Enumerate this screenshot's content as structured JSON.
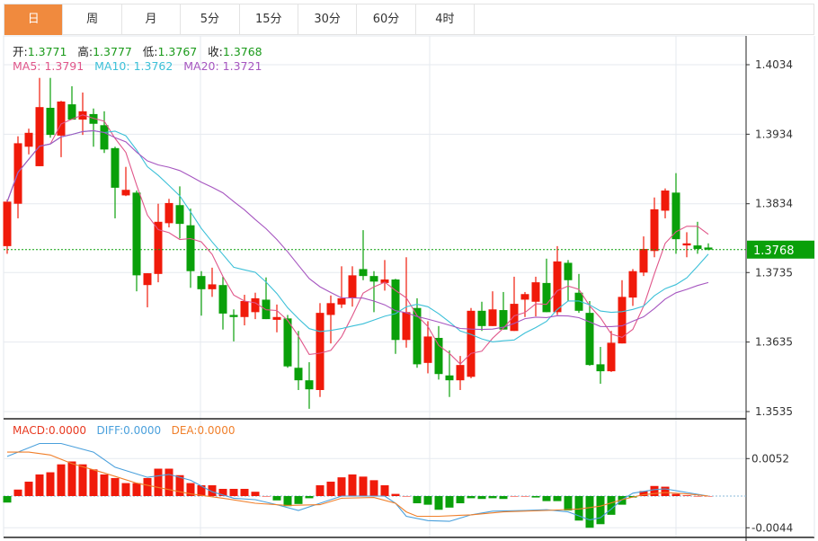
{
  "tabs": [
    {
      "label": "日",
      "active": true
    },
    {
      "label": "周"
    },
    {
      "label": "月"
    },
    {
      "label": "5分"
    },
    {
      "label": "15分"
    },
    {
      "label": "30分"
    },
    {
      "label": "60分"
    },
    {
      "label": "4时"
    }
  ],
  "ohlc_legend": {
    "open_label": "开:",
    "open": "1.3771",
    "high_label": "高:",
    "high": "1.3777",
    "low_label": "低:",
    "low": "1.3767",
    "close_label": "收:",
    "close": "1.3768"
  },
  "ma_legend": {
    "ma5": "MA5: 1.3791",
    "ma10": "MA10: 1.3762",
    "ma20": "MA20: 1.3721"
  },
  "macd_legend": {
    "macd": "MACD:0.0000",
    "diff": "DIFF:0.0000",
    "dea": "DEA:0.0000"
  },
  "colors": {
    "up": "#f01a0a",
    "down": "#0aa00a",
    "ma5": "#e0568a",
    "ma10": "#3cc0d8",
    "ma20": "#a656c0",
    "diff": "#4aa0dc",
    "dea": "#f07f2a",
    "active_tab": "#f08a3e"
  },
  "chart_data": [
    {
      "type": "candlestick",
      "title": "",
      "price_axis_ticks": [
        "1.4034",
        "1.3934",
        "1.3834",
        "1.3735",
        "1.3635",
        "1.3535"
      ],
      "ylim": [
        1.3523,
        1.413
      ],
      "current_price": "1.3768",
      "moving_averages": [
        5,
        10,
        20
      ],
      "candles": [
        [
          1.3773,
          1.3837,
          1.384,
          1.3762
        ],
        [
          1.3834,
          1.3921,
          1.3931,
          1.3813
        ],
        [
          1.3916,
          1.3936,
          1.3942,
          1.3905
        ],
        [
          1.3888,
          1.3973,
          1.4015,
          1.3888
        ],
        [
          1.3972,
          1.3933,
          1.4015,
          1.3929
        ],
        [
          1.3932,
          1.3981,
          1.3982,
          1.3901
        ],
        [
          1.3977,
          1.3955,
          1.4003,
          1.3955
        ],
        [
          1.3955,
          1.3967,
          1.3994,
          1.3933
        ],
        [
          1.3963,
          1.3949,
          1.3971,
          1.3916
        ],
        [
          1.3947,
          1.3912,
          1.3967,
          1.3907
        ],
        [
          1.3914,
          1.3857,
          1.3916,
          1.3813
        ],
        [
          1.3846,
          1.3854,
          1.3887,
          1.3845
        ],
        [
          1.385,
          1.3731,
          1.3853,
          1.3708
        ],
        [
          1.3717,
          1.3734,
          1.3734,
          1.3685
        ],
        [
          1.3733,
          1.3808,
          1.3834,
          1.3721
        ],
        [
          1.3806,
          1.3835,
          1.3841,
          1.38
        ],
        [
          1.3832,
          1.3805,
          1.3859,
          1.3784
        ],
        [
          1.3803,
          1.3737,
          1.3827,
          1.3713
        ],
        [
          1.373,
          1.3711,
          1.3737,
          1.3673
        ],
        [
          1.3711,
          1.3718,
          1.3742,
          1.37
        ],
        [
          1.3717,
          1.3676,
          1.3729,
          1.3653
        ],
        [
          1.3674,
          1.3671,
          1.3682,
          1.3636
        ],
        [
          1.3671,
          1.3694,
          1.3703,
          1.3659
        ],
        [
          1.3678,
          1.3698,
          1.3706,
          1.3668
        ],
        [
          1.3696,
          1.3668,
          1.3728,
          1.3668
        ],
        [
          1.3667,
          1.3671,
          1.3689,
          1.3649
        ],
        [
          1.3669,
          1.36,
          1.3674,
          1.3598
        ],
        [
          1.3598,
          1.358,
          1.3651,
          1.3566
        ],
        [
          1.358,
          1.3567,
          1.3606,
          1.3539
        ],
        [
          1.3566,
          1.3677,
          1.3691,
          1.3556
        ],
        [
          1.3674,
          1.3691,
          1.3702,
          1.3633
        ],
        [
          1.3689,
          1.3698,
          1.3744,
          1.3684
        ],
        [
          1.3698,
          1.3731,
          1.3744,
          1.3686
        ],
        [
          1.374,
          1.373,
          1.3796,
          1.3724
        ],
        [
          1.373,
          1.3722,
          1.3737,
          1.3678
        ],
        [
          1.372,
          1.3725,
          1.3753,
          1.3709
        ],
        [
          1.3725,
          1.3638,
          1.3726,
          1.3618
        ],
        [
          1.3638,
          1.3678,
          1.3757,
          1.3627
        ],
        [
          1.3684,
          1.3603,
          1.3698,
          1.3598
        ],
        [
          1.3605,
          1.3643,
          1.3665,
          1.359
        ],
        [
          1.3641,
          1.3589,
          1.3658,
          1.3581
        ],
        [
          1.3587,
          1.358,
          1.3623,
          1.3556
        ],
        [
          1.358,
          1.3602,
          1.3615,
          1.3566
        ],
        [
          1.3585,
          1.368,
          1.3684,
          1.3583
        ],
        [
          1.368,
          1.3658,
          1.3693,
          1.3651
        ],
        [
          1.3658,
          1.3682,
          1.3708,
          1.3658
        ],
        [
          1.3681,
          1.3653,
          1.3707,
          1.3653
        ],
        [
          1.3651,
          1.369,
          1.3729,
          1.3651
        ],
        [
          1.3696,
          1.3704,
          1.3707,
          1.3671
        ],
        [
          1.3693,
          1.3721,
          1.3729,
          1.3672
        ],
        [
          1.372,
          1.3678,
          1.3755,
          1.3678
        ],
        [
          1.3678,
          1.3751,
          1.3773,
          1.3674
        ],
        [
          1.3749,
          1.3724,
          1.3753,
          1.3694
        ],
        [
          1.3706,
          1.368,
          1.3733,
          1.3677
        ],
        [
          1.3677,
          1.3602,
          1.3694,
          1.3601
        ],
        [
          1.3603,
          1.3593,
          1.3628,
          1.3575
        ],
        [
          1.3593,
          1.3634,
          1.3651,
          1.3592
        ],
        [
          1.3633,
          1.37,
          1.3724,
          1.3633
        ],
        [
          1.3699,
          1.3737,
          1.374,
          1.3687
        ],
        [
          1.3735,
          1.3769,
          1.3787,
          1.373
        ],
        [
          1.3766,
          1.3826,
          1.3843,
          1.3757
        ],
        [
          1.3824,
          1.3853,
          1.3856,
          1.3813
        ],
        [
          1.385,
          1.3783,
          1.3878,
          1.3762
        ],
        [
          1.3774,
          1.3777,
          1.3793,
          1.3757
        ],
        [
          1.3774,
          1.3769,
          1.3808,
          1.3762
        ],
        [
          1.3771,
          1.3768,
          1.3777,
          1.3767
        ]
      ]
    },
    {
      "type": "bar",
      "title": "MACD",
      "axis_ticks": [
        "0.0052",
        "-0.0044"
      ],
      "ylim": [
        -0.0049,
        0.0105
      ],
      "histogram": [
        -0.0009,
        0.0009,
        0.002,
        0.003,
        0.0033,
        0.0044,
        0.0048,
        0.0044,
        0.0037,
        0.003,
        0.0025,
        0.0018,
        0.0018,
        0.0025,
        0.0038,
        0.0038,
        0.0029,
        0.0018,
        0.0015,
        0.0015,
        0.001,
        0.001,
        0.001,
        0.0006,
        0.0,
        -0.0006,
        -0.0014,
        -0.0011,
        -0.0003,
        0.0015,
        0.002,
        0.0026,
        0.003,
        0.0027,
        0.0022,
        0.0015,
        0.0003,
        0.0,
        -0.001,
        -0.0012,
        -0.0019,
        -0.0016,
        -0.001,
        -0.0003,
        -0.0004,
        -0.0003,
        -0.0004,
        0.0,
        0.0,
        -0.0002,
        -0.0007,
        -0.0007,
        -0.002,
        -0.0034,
        -0.0044,
        -0.0039,
        -0.0026,
        -0.0012,
        -0.0002,
        0.0007,
        0.0014,
        0.0013,
        0.0003,
        0.0001,
        0.0,
        0.0
      ],
      "diff": [
        [
          0,
          0.0055
        ],
        [
          3,
          0.0073
        ],
        [
          5,
          0.0073
        ],
        [
          8,
          0.0061
        ],
        [
          10,
          0.004
        ],
        [
          13,
          0.0026
        ],
        [
          15,
          0.003
        ],
        [
          17,
          0.0022
        ],
        [
          19,
          0.0006
        ],
        [
          21,
          -0.0003
        ],
        [
          23,
          -0.0005
        ],
        [
          25,
          -0.0012
        ],
        [
          27,
          -0.002
        ],
        [
          29,
          -0.001
        ],
        [
          31,
          0.0
        ],
        [
          35,
          0.0
        ],
        [
          36,
          -0.001
        ],
        [
          37,
          -0.0028
        ],
        [
          39,
          -0.0034
        ],
        [
          41,
          -0.0035
        ],
        [
          43,
          -0.0026
        ],
        [
          45,
          -0.0021
        ],
        [
          48,
          -0.002
        ],
        [
          50,
          -0.0019
        ],
        [
          52,
          -0.0022
        ],
        [
          54,
          -0.0033
        ],
        [
          55,
          -0.003
        ],
        [
          56,
          -0.0018
        ],
        [
          57,
          -0.0005
        ],
        [
          58,
          0.0004
        ],
        [
          60,
          0.0009
        ],
        [
          61,
          0.001
        ],
        [
          63,
          0.0005
        ],
        [
          65,
          0.0
        ]
      ],
      "dea": [
        [
          0,
          0.0061
        ],
        [
          2,
          0.0061
        ],
        [
          4,
          0.0057
        ],
        [
          6,
          0.0045
        ],
        [
          9,
          0.0032
        ],
        [
          12,
          0.0018
        ],
        [
          15,
          0.0009
        ],
        [
          17,
          0.0003
        ],
        [
          20,
          -0.0003
        ],
        [
          23,
          -0.001
        ],
        [
          26,
          -0.0013
        ],
        [
          29,
          -0.0012
        ],
        [
          31,
          -0.0003
        ],
        [
          34,
          -0.0002
        ],
        [
          36,
          -0.001
        ],
        [
          37,
          -0.0022
        ],
        [
          38,
          -0.0028
        ],
        [
          40,
          -0.0028
        ],
        [
          43,
          -0.0026
        ],
        [
          46,
          -0.0022
        ],
        [
          50,
          -0.002
        ],
        [
          53,
          -0.0018
        ],
        [
          55,
          -0.0014
        ],
        [
          57,
          -0.0005
        ],
        [
          59,
          0.0002
        ],
        [
          61,
          0.0005
        ],
        [
          63,
          0.0003
        ],
        [
          65,
          0.0
        ]
      ]
    }
  ]
}
